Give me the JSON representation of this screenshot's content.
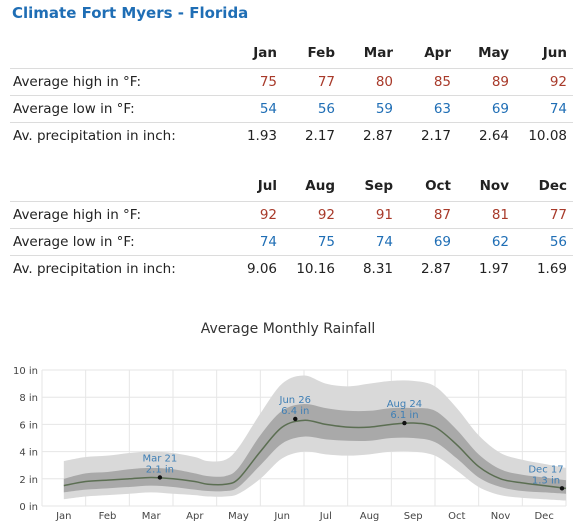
{
  "page": {
    "title": "Climate Fort Myers - Florida"
  },
  "tables": [
    {
      "months": [
        "Jan",
        "Feb",
        "Mar",
        "Apr",
        "May",
        "Jun"
      ],
      "rows": [
        {
          "label": "Average high in °F:",
          "kind": "hi",
          "values": [
            "75",
            "77",
            "80",
            "85",
            "89",
            "92"
          ]
        },
        {
          "label": "Average low in °F:",
          "kind": "lo",
          "values": [
            "54",
            "56",
            "59",
            "63",
            "69",
            "74"
          ]
        },
        {
          "label": "Av. precipitation in inch:",
          "kind": "pr",
          "values": [
            "1.93",
            "2.17",
            "2.87",
            "2.17",
            "2.64",
            "10.08"
          ]
        }
      ]
    },
    {
      "months": [
        "Jul",
        "Aug",
        "Sep",
        "Oct",
        "Nov",
        "Dec"
      ],
      "rows": [
        {
          "label": "Average high in °F:",
          "kind": "hi",
          "values": [
            "92",
            "92",
            "91",
            "87",
            "81",
            "77"
          ]
        },
        {
          "label": "Average low in °F:",
          "kind": "lo",
          "values": [
            "74",
            "75",
            "74",
            "69",
            "62",
            "56"
          ]
        },
        {
          "label": "Av. precipitation in inch:",
          "kind": "pr",
          "values": [
            "9.06",
            "10.16",
            "8.31",
            "2.87",
            "1.97",
            "1.69"
          ]
        }
      ]
    }
  ],
  "chart_data": {
    "type": "area",
    "title": "Average Monthly Rainfall",
    "xlabel": "",
    "ylabel": "",
    "categories": [
      "Jan",
      "Feb",
      "Mar",
      "Apr",
      "May",
      "Jun",
      "Jul",
      "Aug",
      "Sep",
      "Oct",
      "Nov",
      "Dec"
    ],
    "ylim": [
      0,
      10
    ],
    "yticks": [
      0,
      2,
      4,
      6,
      8,
      10
    ],
    "ytick_labels": [
      "0 in",
      "2 in",
      "4 in",
      "6 in",
      "8 in",
      "10 in"
    ],
    "series": [
      {
        "name": "",
        "x": [
          0,
          0.5,
          1,
          1.5,
          2,
          2.5,
          3,
          3.3,
          3.7,
          4,
          4.5,
          5,
          5.5,
          6,
          6.5,
          7,
          7.5,
          8,
          8.5,
          9,
          9.5,
          10,
          10.5,
          11,
          11.5
        ],
        "y": [
          1.5,
          1.8,
          1.9,
          2.0,
          2.1,
          2.0,
          1.8,
          1.6,
          1.6,
          2.0,
          4.0,
          5.8,
          6.3,
          6.0,
          5.8,
          5.8,
          6.0,
          6.1,
          5.8,
          4.5,
          2.9,
          2.0,
          1.7,
          1.5,
          1.3
        ],
        "inner_band": [
          [
            1.0,
            2.0
          ],
          [
            1.2,
            2.4
          ],
          [
            1.3,
            2.5
          ],
          [
            1.4,
            2.7
          ],
          [
            1.5,
            2.8
          ],
          [
            1.4,
            2.7
          ],
          [
            1.2,
            2.4
          ],
          [
            1.1,
            2.2
          ],
          [
            1.1,
            2.2
          ],
          [
            1.4,
            2.8
          ],
          [
            3.0,
            5.2
          ],
          [
            4.6,
            7.0
          ],
          [
            5.1,
            7.5
          ],
          [
            4.9,
            7.2
          ],
          [
            4.8,
            7.0
          ],
          [
            4.8,
            7.0
          ],
          [
            5.0,
            7.2
          ],
          [
            5.0,
            7.2
          ],
          [
            4.7,
            7.0
          ],
          [
            3.5,
            5.6
          ],
          [
            2.1,
            3.8
          ],
          [
            1.4,
            2.7
          ],
          [
            1.1,
            2.3
          ],
          [
            1.0,
            2.1
          ],
          [
            0.9,
            1.9
          ]
        ],
        "outer_band": [
          [
            0.5,
            3.3
          ],
          [
            0.7,
            3.6
          ],
          [
            0.8,
            3.7
          ],
          [
            0.9,
            3.9
          ],
          [
            1.0,
            4.0
          ],
          [
            0.9,
            3.9
          ],
          [
            0.8,
            3.6
          ],
          [
            0.7,
            3.3
          ],
          [
            0.7,
            3.4
          ],
          [
            0.9,
            4.3
          ],
          [
            2.0,
            6.8
          ],
          [
            3.5,
            9.0
          ],
          [
            4.0,
            9.6
          ],
          [
            3.8,
            9.0
          ],
          [
            3.7,
            8.8
          ],
          [
            3.8,
            9.0
          ],
          [
            4.0,
            9.2
          ],
          [
            4.0,
            9.2
          ],
          [
            3.7,
            8.8
          ],
          [
            2.6,
            7.2
          ],
          [
            1.4,
            5.2
          ],
          [
            0.8,
            3.9
          ],
          [
            0.6,
            3.4
          ],
          [
            0.5,
            3.1
          ],
          [
            0.4,
            2.8
          ]
        ]
      }
    ],
    "annotations": [
      {
        "x": 2.2,
        "y": 2.1,
        "date": "Mar 21",
        "value": "2.1 in"
      },
      {
        "x": 5.3,
        "y": 6.4,
        "date": "Jun 26",
        "value": "6.4 in"
      },
      {
        "x": 7.8,
        "y": 6.1,
        "date": "Aug 24",
        "value": "6.1 in"
      },
      {
        "x": 11.55,
        "y": 1.3,
        "date": "Dec 17",
        "value": "1.3 in"
      }
    ],
    "colors": {
      "line": "#5b6e52",
      "inner_band": "#a9a9a9",
      "outer_band": "#d9d9d9",
      "annotation_text": "#3f7fb5",
      "grid": "#e6e6e6"
    },
    "grid": true
  }
}
